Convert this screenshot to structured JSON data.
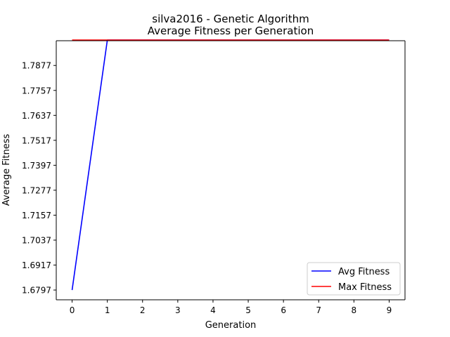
{
  "chart_data": {
    "type": "line",
    "title": [
      "silva2016 - Genetic Algorithm",
      "Average Fitness per Generation"
    ],
    "xlabel": "Generation",
    "ylabel": "Average Fitness",
    "x": [
      0,
      1,
      2,
      3,
      4,
      5,
      6,
      7,
      8,
      9
    ],
    "xlim": [
      -0.45,
      9.45
    ],
    "ylim": [
      1.675,
      1.7996
    ],
    "xticks": [
      "0",
      "1",
      "2",
      "3",
      "4",
      "5",
      "6",
      "7",
      "8",
      "9"
    ],
    "yticks": [
      "1.6797",
      "1.6917",
      "1.7037",
      "1.7157",
      "1.7277",
      "1.7397",
      "1.7517",
      "1.7637",
      "1.7757",
      "1.7877"
    ],
    "grid": false,
    "legend_position": "lower-right",
    "series": [
      {
        "name": "Avg Fitness",
        "color": "#0000ff",
        "values": [
          1.6797,
          1.7999,
          1.7999,
          1.7999,
          1.7999,
          1.7999,
          1.7999,
          1.7999,
          1.7999,
          1.7999
        ]
      },
      {
        "name": "Max Fitness",
        "color": "#ff0000",
        "values": [
          1.7999,
          1.7999,
          1.7999,
          1.7999,
          1.7999,
          1.7999,
          1.7999,
          1.7999,
          1.7999,
          1.7999
        ]
      }
    ]
  }
}
